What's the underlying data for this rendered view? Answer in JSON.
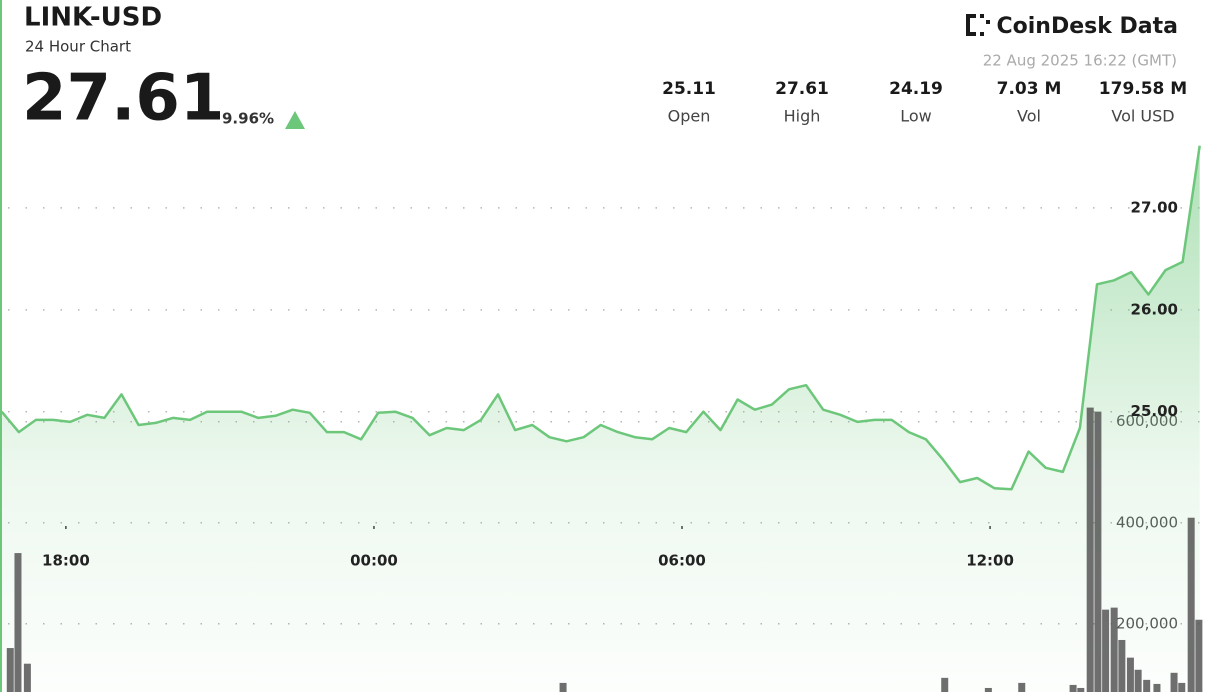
{
  "header": {
    "title": "LINK-USD",
    "subtitle": "24 Hour Chart",
    "price": "27.61",
    "change": "9.96%",
    "brand": "CoinDesk Data",
    "timestamp": "22 Aug 2025 16:22 (GMT)"
  },
  "stats": [
    {
      "value": "25.11",
      "label": "Open"
    },
    {
      "value": "27.61",
      "label": "High"
    },
    {
      "value": "24.19",
      "label": "Low"
    },
    {
      "value": "7.03 M",
      "label": "Vol"
    },
    {
      "value": "179.58 M",
      "label": "Vol USD"
    }
  ],
  "chart_data": {
    "type": "line",
    "x": [
      1005,
      1025,
      1045,
      1065,
      1085,
      1105,
      1125,
      1145,
      1165,
      1185,
      1205,
      1225,
      1245,
      1265,
      1285,
      1305,
      1325,
      1345,
      1365,
      1385,
      1405,
      1425,
      1445,
      1465,
      1485,
      1505,
      1525,
      1545,
      1565,
      1585,
      1605,
      1625,
      1645,
      1665,
      1685,
      1705,
      1725,
      1745,
      1765,
      1785,
      1805,
      1825,
      1845,
      1865,
      1885,
      1905,
      1925,
      1945,
      1965,
      1985,
      2005,
      2025,
      2045,
      2065,
      2085,
      2105,
      2125,
      2145,
      2165,
      2185,
      2205,
      2225,
      2245,
      2265,
      2285,
      2305,
      2325,
      2345,
      2365,
      2385,
      2405
    ],
    "series": [
      {
        "name": "Price",
        "color": "#6cc77a",
        "values": [
          25.0,
          24.8,
          24.92,
          24.92,
          24.9,
          24.97,
          24.94,
          25.17,
          24.87,
          24.89,
          24.94,
          24.92,
          25.0,
          25.0,
          25.0,
          24.94,
          24.96,
          25.02,
          24.99,
          24.8,
          24.8,
          24.73,
          24.99,
          25.0,
          24.94,
          24.77,
          24.84,
          24.82,
          24.92,
          25.17,
          24.82,
          24.87,
          24.75,
          24.71,
          24.75,
          24.87,
          24.8,
          24.75,
          24.73,
          24.84,
          24.8,
          25.0,
          24.82,
          25.12,
          25.02,
          25.07,
          25.22,
          25.26,
          25.02,
          24.97,
          24.9,
          24.92,
          24.92,
          24.8,
          24.73,
          24.53,
          24.31,
          24.35,
          24.25,
          24.24,
          24.61,
          24.45,
          24.41,
          24.84,
          26.25,
          26.29,
          26.37,
          26.15,
          26.39,
          26.47,
          27.61
        ]
      },
      {
        "name": "Volume",
        "color": "#555555",
        "axis": "y2",
        "x": [
          1015,
          1024,
          1035,
          1661,
          2107,
          2158,
          2197,
          2257,
          2266,
          2277,
          2286,
          2295,
          2305,
          2314,
          2324,
          2333,
          2343,
          2355,
          2375,
          2384,
          2395,
          2404
        ],
        "values": [
          152000,
          340000,
          121000,
          83000,
          93000,
          73000,
          83000,
          79000,
          73000,
          628000,
          620000,
          228000,
          232000,
          168000,
          133000,
          109000,
          89000,
          81000,
          103000,
          83000,
          410000,
          208000
        ]
      }
    ],
    "xlim": [
      1003,
      2417
    ],
    "xticks": [
      {
        "value": 1080,
        "label": "18:00"
      },
      {
        "value": 1440,
        "label": "00:00"
      },
      {
        "value": 1800,
        "label": "06:00"
      },
      {
        "value": 2160,
        "label": "12:00"
      }
    ],
    "ylim": [
      22.25,
      28
    ],
    "yticks": [
      {
        "value": 25,
        "label": "25.00"
      },
      {
        "value": 26,
        "label": "26.00"
      },
      {
        "value": 27,
        "label": "27.00"
      }
    ],
    "y2lim": [
      65000,
      1225000
    ],
    "y2ticks": [
      {
        "value": 200000,
        "label": "200,000"
      },
      {
        "value": 400000,
        "label": "400,000"
      },
      {
        "value": 600000,
        "label": "600,000"
      }
    ],
    "grid": true
  }
}
